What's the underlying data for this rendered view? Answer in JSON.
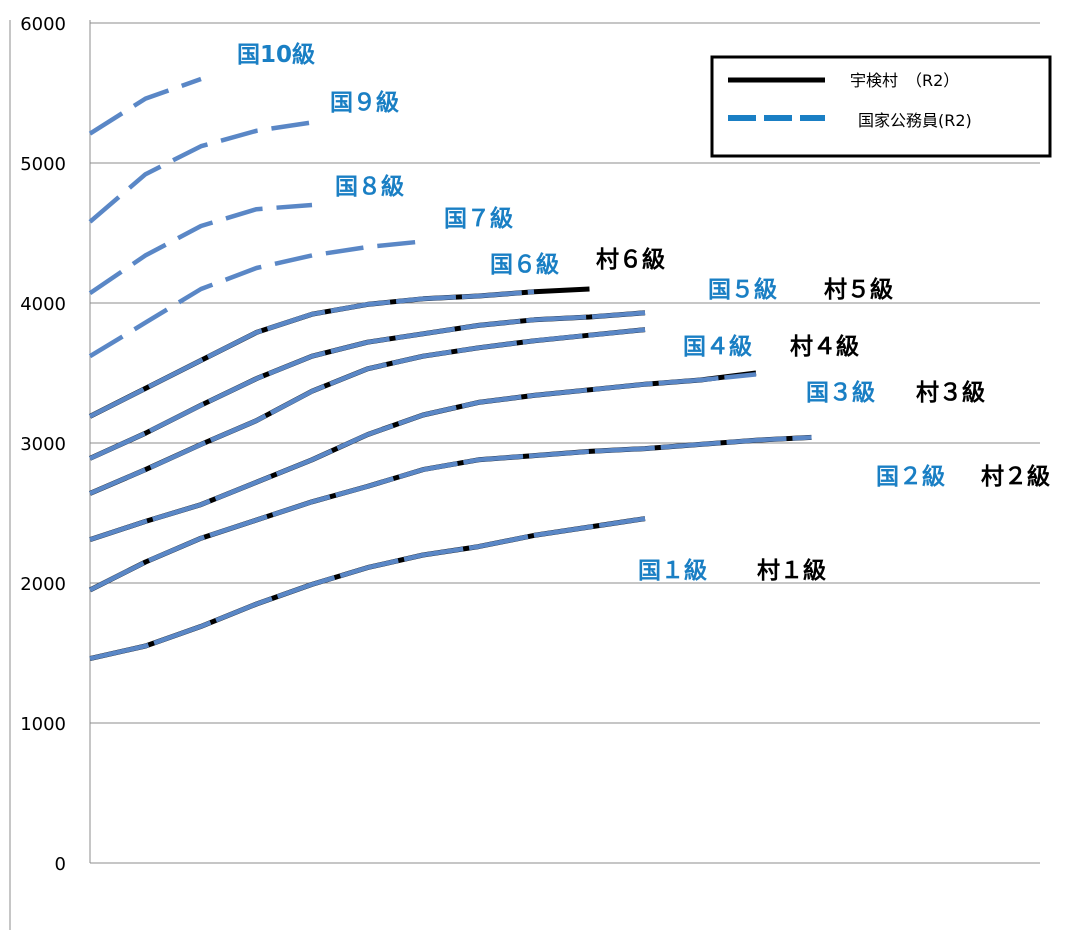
{
  "chart_data": {
    "type": "line",
    "ylim": [
      0,
      6000
    ],
    "yticks": [
      "0",
      "1000",
      "2000",
      "3000",
      "4000",
      "5000",
      "6000"
    ],
    "grid": true,
    "legend_position": "top-right",
    "colors": {
      "village": "#000000",
      "national": "#5a87c6",
      "national_label": "#1a7fc4"
    },
    "legend": [
      {
        "name": "宇検村　（R2）",
        "style": "solid"
      },
      {
        "name": "国家公務員(R2)",
        "style": "dashed"
      }
    ],
    "village_series": [
      {
        "name": "村１級",
        "values": [
          1460,
          1550,
          1690,
          1850,
          1990,
          2110,
          2200,
          2260,
          2340,
          2400,
          2460
        ]
      },
      {
        "name": "村２級",
        "values": [
          1950,
          2150,
          2320,
          2450,
          2580,
          2690,
          2810,
          2880,
          2910,
          2940,
          2960,
          2990,
          3020,
          3040
        ]
      },
      {
        "name": "村３級",
        "values": [
          2310,
          2440,
          2560,
          2720,
          2880,
          3060,
          3200,
          3290,
          3340,
          3380,
          3420,
          3450,
          3500
        ]
      },
      {
        "name": "村４級",
        "values": [
          2640,
          2810,
          2990,
          3160,
          3370,
          3530,
          3620,
          3680,
          3730,
          3770,
          3810
        ]
      },
      {
        "name": "村５級",
        "values": [
          2890,
          3070,
          3270,
          3460,
          3620,
          3720,
          3780,
          3840,
          3880,
          3900,
          3930
        ]
      },
      {
        "name": "村６級",
        "values": [
          3190,
          3390,
          3590,
          3790,
          3920,
          3990,
          4030,
          4050,
          4080,
          4100
        ]
      }
    ],
    "national_series": [
      {
        "name": "国１級",
        "values": [
          1460,
          1550,
          1690,
          1850,
          1990,
          2110,
          2200,
          2260,
          2340,
          2400,
          2460
        ]
      },
      {
        "name": "国２級",
        "values": [
          1950,
          2150,
          2320,
          2450,
          2580,
          2690,
          2810,
          2880,
          2910,
          2940,
          2960,
          2990,
          3020,
          3040
        ]
      },
      {
        "name": "国３級",
        "values": [
          2310,
          2440,
          2560,
          2720,
          2880,
          3060,
          3200,
          3290,
          3340,
          3380,
          3420,
          3450,
          3490
        ]
      },
      {
        "name": "国４級",
        "values": [
          2640,
          2810,
          2990,
          3160,
          3370,
          3530,
          3620,
          3680,
          3730,
          3770,
          3810
        ]
      },
      {
        "name": "国５級",
        "values": [
          2890,
          3070,
          3270,
          3460,
          3620,
          3720,
          3780,
          3840,
          3880,
          3900,
          3930
        ]
      },
      {
        "name": "国６級",
        "values": [
          3190,
          3390,
          3590,
          3790,
          3920,
          3990,
          4030,
          4050,
          4080
        ]
      },
      {
        "name": "国７級",
        "values": [
          3620,
          3860,
          4100,
          4250,
          4340,
          4400,
          4440
        ]
      },
      {
        "name": "国８級",
        "values": [
          4070,
          4340,
          4550,
          4670,
          4700
        ]
      },
      {
        "name": "国９級",
        "values": [
          4580,
          4920,
          5120,
          5230,
          5290
        ]
      },
      {
        "name": "国10級",
        "values": [
          5210,
          5460,
          5600
        ]
      }
    ]
  }
}
